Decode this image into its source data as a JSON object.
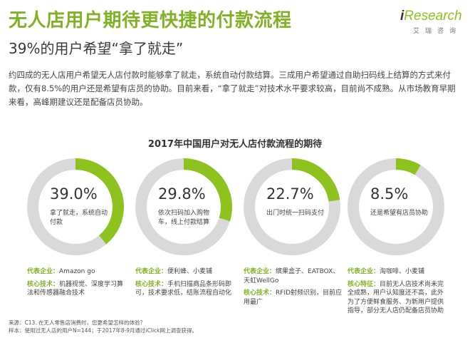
{
  "header": {
    "title": "无人店用户期待更快捷的付款流程",
    "subtitle": "39%的用户希望“拿了就走”"
  },
  "logo": {
    "text_i": "i",
    "text_rest": "Research",
    "text_cn": "艾瑞咨询"
  },
  "intro": "约四成的无人店用户希望无人店付款时能够拿了就走，系统自动付款结算。三成用户希望通过自助扫码线上结算的方式来付款，仅有8.5%的用户还是希望有店员的协助。目前来看，“拿了就走”对技术水平要求较高，目前尚不成熟。从市场教育早期来看，高峰期建议还是配备店员协助。",
  "colors": {
    "accent": "#8dc21f",
    "ring_track": "#d9d9d9",
    "title_green": "#80b227"
  },
  "chart_data": {
    "type": "pie",
    "title": "2017年中国用户对无人店付款流程的期待",
    "categories": [
      "拿了就走，系统自动付款",
      "依次扫码加入购物车，线上付款结算",
      "出门时统一扫码支付",
      "还是希望有店员协助"
    ],
    "values": [
      39.0,
      29.8,
      22.7,
      8.5
    ],
    "value_labels": [
      "39.0%",
      "29.8%",
      "22.7%",
      "8.5%"
    ]
  },
  "cards": [
    {
      "rows": [
        {
          "key": "代表企业：",
          "text": "Amazon go"
        },
        {
          "key": "核心技术：",
          "text": "机器视觉、深度学习算法和传感器融合技术"
        }
      ]
    },
    {
      "rows": [
        {
          "key": "代表企业：",
          "text": "便利蜂、小麦铺"
        },
        {
          "key": "核心技术：",
          "text": "手机扫描商品条形码即可，技术要求低，结账流程自动化"
        }
      ]
    },
    {
      "rows": [
        {
          "key": "代表企业：",
          "text": "缤果盒子、EATBOX、天虹WellGo"
        },
        {
          "key": "核心技术：",
          "text": "RFID射频识别，目前应用最广"
        }
      ]
    },
    {
      "rows": [
        {
          "key": "代表企业：",
          "text": "淘咖啡、小麦铺"
        },
        {
          "key": "核心特征：",
          "text": "目前无人店技术尚未完全成熟，用户认知度还不高，此外为了方便鲜食服务、为新用户提供指导，部分无人店仍配备店员协助"
        }
      ]
    }
  ],
  "footnote": {
    "source": "来源：C13. 在无人零售店消费时，您更希望怎样的体验？",
    "sample": "样本：使用过无人店的用户N=144；于2017年8-9月通过iClick网上调查获得。"
  }
}
